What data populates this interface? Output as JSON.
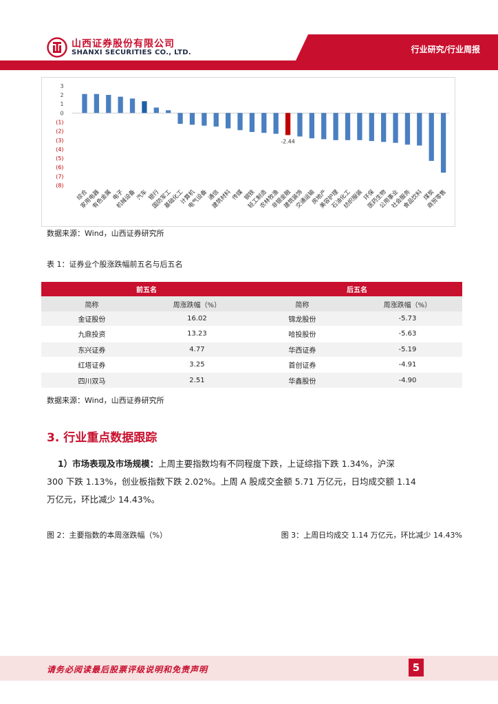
{
  "header": {
    "company_cn": "山西证券股份有限公司",
    "company_en": "SHANXI SECURITIES CO., LTD.",
    "section_label": "行业研究/行业周报",
    "brand_color": "#c8102e"
  },
  "chart_data": {
    "type": "bar",
    "categories": [
      "综合",
      "家用电器",
      "有色金属",
      "电子",
      "机械设备",
      "汽车",
      "银行",
      "国防军工",
      "基础化工",
      "计算机",
      "电气设备",
      "通信",
      "建筑材料",
      "传媒",
      "钢铁",
      "轻工制造",
      "农林牧渔",
      "非银金融",
      "建筑装饰",
      "交通运输",
      "房地产",
      "美容护理",
      "石油化工",
      "纺织服装",
      "环保",
      "医药生物",
      "公用事业",
      "社会服务",
      "食品饮料",
      "煤炭",
      "商贸零售"
    ],
    "values": [
      2.1,
      2.1,
      2.0,
      1.8,
      1.6,
      1.3,
      0.6,
      0.3,
      -1.2,
      -1.3,
      -1.4,
      -1.5,
      -1.7,
      -1.9,
      -2.1,
      -2.2,
      -2.3,
      -2.44,
      -2.6,
      -2.8,
      -2.9,
      -3.0,
      -3.0,
      -3.0,
      -3.1,
      -3.2,
      -3.3,
      -3.5,
      -3.6,
      -5.3,
      -6.6
    ],
    "highlight_index": 17,
    "highlight_label": "-2.44",
    "y_ticks": [
      "3",
      "2",
      "1",
      "0",
      "(1)",
      "(2)",
      "(3)",
      "(4)",
      "(5)",
      "(6)",
      "(7)",
      "(8)"
    ],
    "ylim": [
      -8,
      3
    ],
    "bar_color": "#4a7fc1",
    "highlight_color": "#c00000",
    "accent_bar_index": 5,
    "accent_bar_color": "#1f5fa8",
    "grid": false
  },
  "chart_source": "数据来源：Wind，山西证券研究所",
  "table": {
    "title": "表 1：证券业个股涨跌幅前五名与后五名",
    "group_top": "前五名",
    "group_bottom": "后五名",
    "col_name": "简称",
    "col_change": "周涨跌幅（%）",
    "top": [
      {
        "name": "金证股份",
        "change": "16.02"
      },
      {
        "name": "九鼎投资",
        "change": "13.23"
      },
      {
        "name": "东兴证券",
        "change": "4.77"
      },
      {
        "name": "红塔证券",
        "change": "3.25"
      },
      {
        "name": "四川双马",
        "change": "2.51"
      }
    ],
    "bottom": [
      {
        "name": "锦龙股份",
        "change": "-5.73"
      },
      {
        "name": "哈投股份",
        "change": "-5.63"
      },
      {
        "name": "华西证券",
        "change": "-5.19"
      },
      {
        "name": "首创证券",
        "change": "-4.91"
      },
      {
        "name": "华鑫股份",
        "change": "-4.90"
      }
    ]
  },
  "table_source": "数据来源：Wind，山西证券研究所",
  "section": {
    "title": "3. 行业重点数据跟踪",
    "lead": "1）市场表现及市场规模：",
    "line1": "上周主要指数均有不同程度下跌，上证综指下跌 1.34%，沪深",
    "line2": "300 下跌 1.13%，创业板指数下跌 2.02%。上周 A 股成交金额 5.71 万亿元，日均成交额 1.14",
    "line3": "万亿元，环比减少 14.43%。"
  },
  "figures": {
    "fig2": "图 2：主要指数的本周涨跌幅（%）",
    "fig3": "图 3：上周日均成交 1.14 万亿元，环比减少 14.43%"
  },
  "footer": {
    "disclaimer": "请务必阅读最后股票评级说明和免责声明",
    "page": "5"
  }
}
